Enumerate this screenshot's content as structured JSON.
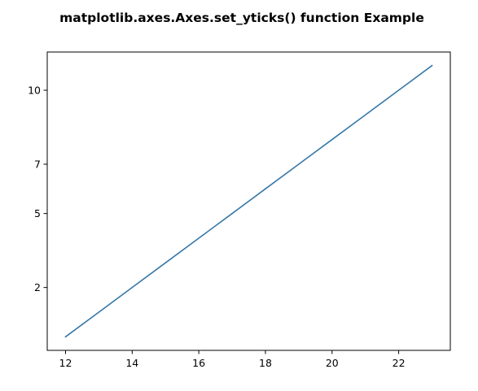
{
  "chart_data": {
    "type": "line",
    "title": "matplotlib.axes.Axes.set_yticks() function Example",
    "xlabel": "",
    "ylabel": "",
    "x": [
      12,
      13,
      14,
      15,
      16,
      17,
      18,
      19,
      20,
      21,
      22,
      23
    ],
    "series": [
      {
        "values": [
          0,
          1,
          2,
          3,
          4,
          5,
          6,
          7,
          8,
          9,
          10,
          11
        ],
        "color": "#3778a8"
      }
    ],
    "xlim": [
      11.45,
      23.55
    ],
    "ylim": [
      -0.55,
      11.55
    ],
    "xticks": [
      12,
      14,
      16,
      18,
      20,
      22
    ],
    "xtick_labels": [
      "12",
      "14",
      "16",
      "18",
      "20",
      "22"
    ],
    "yticks": [
      2,
      5,
      7,
      10
    ],
    "ytick_labels": [
      "2",
      "5",
      "7",
      "10"
    ],
    "grid": false,
    "legend": "none"
  }
}
